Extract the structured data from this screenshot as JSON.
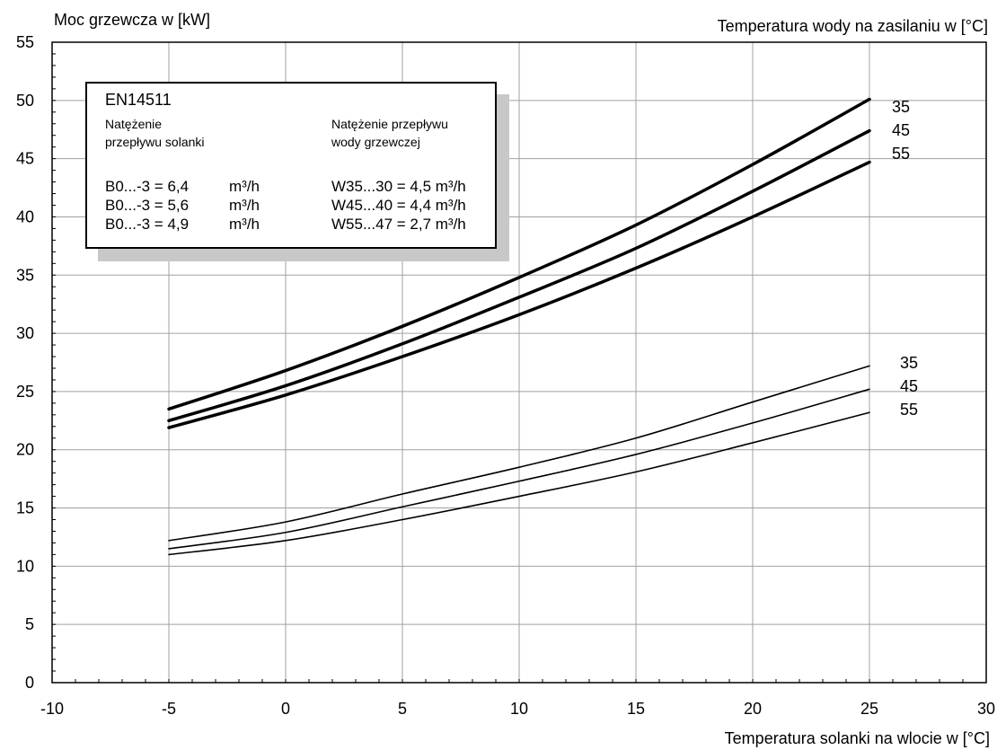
{
  "chart_data": {
    "type": "line",
    "ylabel": "Moc grzewcza w [kW]",
    "xlabel": "Temperatura solanki na wlocie w [°C]",
    "series_label_title": "Temperatura wody na zasilaniu w [°C]",
    "xlim": [
      -10,
      30
    ],
    "ylim": [
      0,
      55
    ],
    "x_ticks": [
      "-10",
      "-5",
      "0",
      "5",
      "10",
      "15",
      "20",
      "25",
      "30"
    ],
    "y_ticks": [
      "0",
      "5",
      "10",
      "15",
      "20",
      "25",
      "30",
      "35",
      "40",
      "45",
      "50",
      "55"
    ],
    "grid": true,
    "x": [
      -5,
      0,
      5,
      10,
      15,
      20,
      25
    ],
    "series": [
      {
        "name": "35",
        "group": "upper",
        "values": [
          23.5,
          26.8,
          30.6,
          34.8,
          39.3,
          44.5,
          50.1
        ]
      },
      {
        "name": "45",
        "group": "upper",
        "values": [
          22.5,
          25.5,
          29.1,
          33.1,
          37.3,
          42.2,
          47.4
        ]
      },
      {
        "name": "55",
        "group": "upper",
        "values": [
          21.9,
          24.7,
          28.0,
          31.6,
          35.6,
          40.0,
          44.7
        ]
      },
      {
        "name": "35",
        "group": "lower",
        "values": [
          12.2,
          13.8,
          16.2,
          18.5,
          21.0,
          24.1,
          27.2
        ]
      },
      {
        "name": "45",
        "group": "lower",
        "values": [
          11.5,
          12.9,
          15.1,
          17.3,
          19.6,
          22.3,
          25.2
        ]
      },
      {
        "name": "55",
        "group": "lower",
        "values": [
          11.0,
          12.2,
          14.0,
          16.0,
          18.1,
          20.6,
          23.2
        ]
      }
    ],
    "legend": {
      "title": "EN14511",
      "col1_header_line1": "Natężenie",
      "col1_header_line2": "przepływu solanki",
      "col2_header_line1": "Natężenie przepływu",
      "col2_header_line2": "wody grzewczej",
      "rows": [
        {
          "brine": "B0...-3 = 6,4",
          "brine_unit": "m³/h",
          "water": "W35...30 = 4,5 m³/h"
        },
        {
          "brine": "B0...-3 = 5,6",
          "brine_unit": "m³/h",
          "water": "W45...40 = 4,4 m³/h"
        },
        {
          "brine": "B0...-3 = 4,9",
          "brine_unit": "m³/h",
          "water": "W55...47 = 2,7 m³/h"
        }
      ]
    },
    "colors": {
      "lines": "#000000",
      "grid": "#a0a0a0",
      "shadow": "#c8c8c8"
    }
  }
}
